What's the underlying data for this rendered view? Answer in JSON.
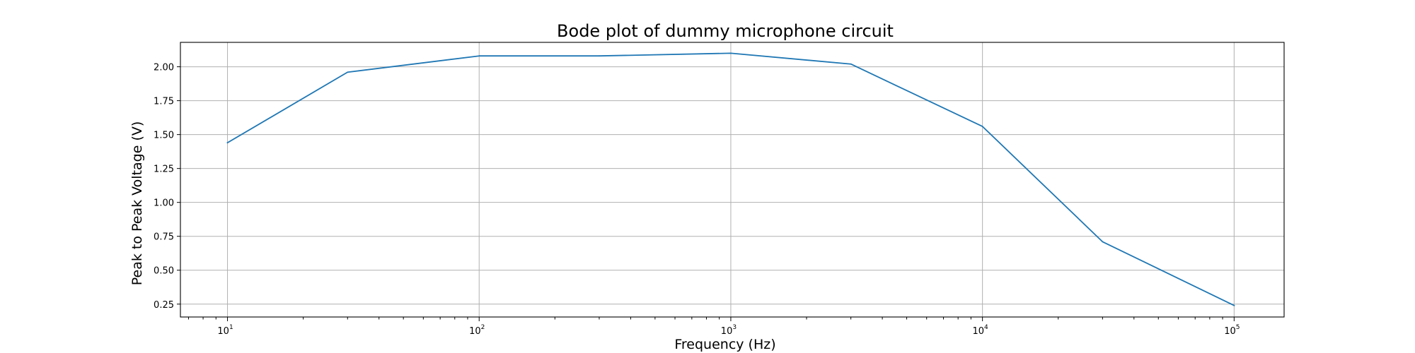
{
  "chart_data": {
    "type": "line",
    "title": "Bode plot of dummy microphone circuit",
    "xlabel": "Frequency (Hz)",
    "ylabel": "Peak to Peak Voltage (V)",
    "xscale": "log",
    "xlim": [
      6.5,
      158000
    ],
    "ylim": [
      0.155,
      2.18
    ],
    "grid": true,
    "x_ticks": [
      {
        "base": "10",
        "exp": "1",
        "value": 10
      },
      {
        "base": "10",
        "exp": "2",
        "value": 100
      },
      {
        "base": "10",
        "exp": "3",
        "value": 1000
      },
      {
        "base": "10",
        "exp": "4",
        "value": 10000
      },
      {
        "base": "10",
        "exp": "5",
        "value": 100000
      }
    ],
    "y_ticks": [
      "0.25",
      "0.50",
      "0.75",
      "1.00",
      "1.25",
      "1.50",
      "1.75",
      "2.00"
    ],
    "series": [
      {
        "color": "#1f77b4",
        "x": [
          10,
          30,
          100,
          300,
          1000,
          3000,
          10000,
          30000,
          100000
        ],
        "y": [
          1.44,
          1.96,
          2.08,
          2.08,
          2.1,
          2.02,
          1.56,
          0.71,
          0.24
        ]
      }
    ]
  }
}
